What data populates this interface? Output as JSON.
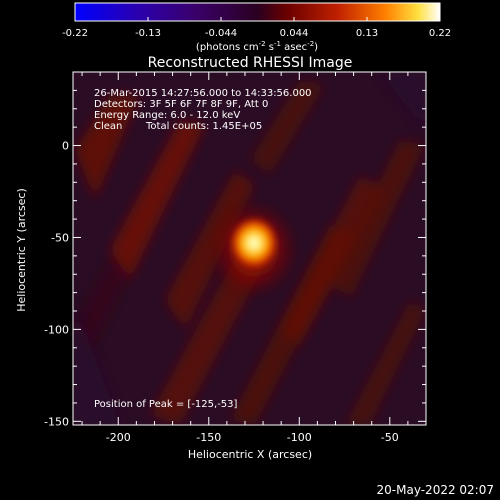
{
  "colorbar": {
    "ticks": [
      "-0.22",
      "-0.13",
      "-0.044",
      "0.044",
      "0.13",
      "0.22"
    ],
    "units_main": "(photons cm",
    "units_exp1": "-2",
    "units_mid": " s",
    "units_exp2": "-1",
    "units_end": " asec",
    "units_exp3": "-2",
    "units_close": ")"
  },
  "title": "Reconstructed RHESSI Image",
  "annotations": {
    "time_range": "26-Mar-2015 14:27:56.000 to 14:33:56.000",
    "detectors": "Detectors: 3F 5F 6F 7F 8F 9F, Att 0",
    "energy_range": "Energy Range: 6.0 - 12.0 keV",
    "algorithm": "Clean",
    "total_counts": "Total counts: 1.45E+05",
    "peak_position": "Position of Peak = [-125,-53]"
  },
  "axes": {
    "xlabel": "Heliocentric X (arcsec)",
    "ylabel": "Heliocentric Y (arcsec)",
    "x_ticks": [
      "-200",
      "-150",
      "-100",
      "-50"
    ],
    "y_ticks": [
      "0",
      "-50",
      "-100",
      "-150"
    ],
    "x_tick_values": [
      -200,
      -150,
      -100,
      -50
    ],
    "y_tick_values": [
      0,
      -50,
      -100,
      -150
    ],
    "xlim": [
      -225,
      -30
    ],
    "ylim": [
      -152,
      40
    ]
  },
  "peak": {
    "x": -125,
    "y": -53
  },
  "footer": {
    "date": "20-May-2022 02:07"
  }
}
